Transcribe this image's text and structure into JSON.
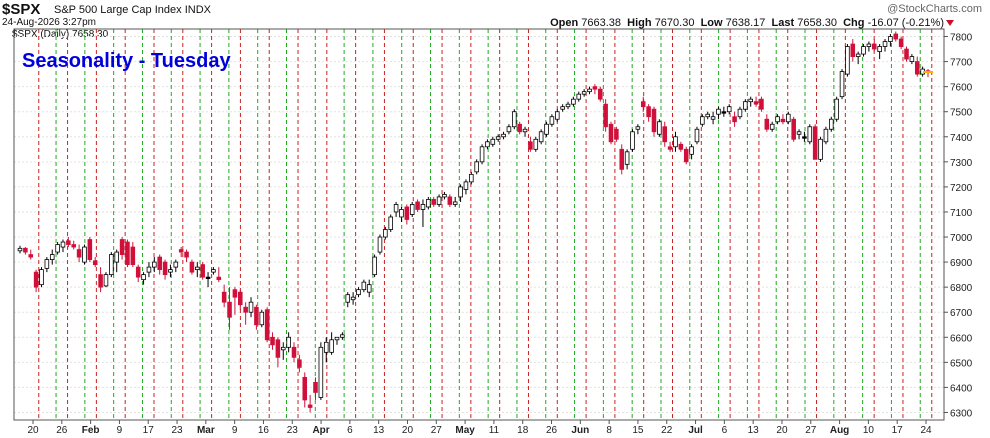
{
  "header": {
    "symbol": "$SPX",
    "description": "S&P 500 Large Cap Index",
    "exchange": "INDX",
    "date_time": "24-Aug-2026 3:27pm",
    "watermark": "@StockCharts.com",
    "open_label": "Open",
    "open": "7663.38",
    "high_label": "High",
    "high": "7670.30",
    "low_label": "Low",
    "low": "7638.17",
    "last_label": "Last",
    "last": "7658.30",
    "chg_label": "Chg",
    "chg": "-16.07 (-0.21%)",
    "legend": "$SPX (Daily) 7658.30"
  },
  "overlay_title": "Seasonality - Tuesday",
  "colors": {
    "up": "#ffffff",
    "down": "#d0103a",
    "doji": "#000000",
    "tuesday_line": "#cc2222",
    "friday_line": "#22aa22",
    "title": "#0000dd"
  },
  "chart_data": {
    "type": "candlestick",
    "ylim": [
      6270,
      7830
    ],
    "y_ticks": [
      6300,
      6400,
      6500,
      6600,
      6700,
      6800,
      6900,
      7000,
      7100,
      7200,
      7300,
      7400,
      7500,
      7600,
      7700,
      7800
    ],
    "x_tick_labels": [
      "20",
      "26",
      "Feb",
      "9",
      "17",
      "23",
      "Mar",
      "9",
      "16",
      "23",
      "Apr",
      "6",
      "13",
      "20",
      "27",
      "May",
      "11",
      "18",
      "26",
      "Jun",
      "8",
      "15",
      "22",
      "Jul",
      "6",
      "13",
      "20",
      "27",
      "Aug",
      "10",
      "17",
      "24"
    ],
    "x_tick_bold": [
      "Feb",
      "Mar",
      "Apr",
      "May",
      "Jun",
      "Jul",
      "Aug"
    ],
    "vertical_lines": "red dashed on each Tuesday, green dashed on each Friday",
    "grid": true,
    "legend": "none",
    "series": [
      {
        "values": [
          [
            6945,
            6965,
            6935,
            6955
          ],
          [
            6955,
            6960,
            6930,
            6940
          ],
          [
            6930,
            6950,
            6910,
            6920
          ],
          [
            6860,
            6870,
            6780,
            6800
          ],
          [
            6810,
            6880,
            6800,
            6870
          ],
          [
            6875,
            6920,
            6860,
            6910
          ],
          [
            6910,
            6950,
            6890,
            6930
          ],
          [
            6940,
            6980,
            6930,
            6970
          ],
          [
            6960,
            6990,
            6940,
            6980
          ],
          [
            6985,
            7000,
            6960,
            6970
          ],
          [
            6970,
            6985,
            6950,
            6960
          ],
          [
            6950,
            6970,
            6900,
            6920
          ],
          [
            6900,
            6970,
            6890,
            6960
          ],
          [
            6990,
            7000,
            6900,
            6910
          ],
          [
            6905,
            6920,
            6880,
            6890
          ],
          [
            6850,
            6880,
            6780,
            6800
          ],
          [
            6805,
            6860,
            6800,
            6850
          ],
          [
            6850,
            6940,
            6840,
            6930
          ],
          [
            6900,
            6950,
            6860,
            6940
          ],
          [
            6990,
            7000,
            6910,
            6930
          ],
          [
            6980,
            6990,
            6880,
            6890
          ],
          [
            6960,
            6980,
            6880,
            6890
          ],
          [
            6880,
            6890,
            6820,
            6840
          ],
          [
            6830,
            6860,
            6810,
            6850
          ],
          [
            6860,
            6900,
            6840,
            6880
          ],
          [
            6880,
            6920,
            6860,
            6900
          ],
          [
            6920,
            6930,
            6850,
            6870
          ],
          [
            6900,
            6910,
            6830,
            6850
          ],
          [
            6860,
            6890,
            6840,
            6870
          ],
          [
            6880,
            6910,
            6860,
            6900
          ],
          [
            6950,
            6960,
            6920,
            6940
          ],
          [
            6940,
            6950,
            6900,
            6920
          ],
          [
            6900,
            6910,
            6850,
            6860
          ],
          [
            6870,
            6900,
            6840,
            6880
          ],
          [
            6890,
            6900,
            6830,
            6840
          ],
          [
            6840,
            6860,
            6800,
            6840
          ],
          [
            6860,
            6880,
            6850,
            6870
          ],
          [
            6840,
            6880,
            6820,
            6830
          ],
          [
            6780,
            6810,
            6720,
            6740
          ],
          [
            6740,
            6800,
            6630,
            6680
          ],
          [
            6790,
            6800,
            6690,
            6760
          ],
          [
            6780,
            6790,
            6710,
            6730
          ],
          [
            6720,
            6740,
            6650,
            6700
          ],
          [
            6700,
            6760,
            6680,
            6740
          ],
          [
            6720,
            6730,
            6630,
            6650
          ],
          [
            6650,
            6710,
            6640,
            6700
          ],
          [
            6710,
            6720,
            6580,
            6590
          ],
          [
            6600,
            6620,
            6550,
            6570
          ],
          [
            6590,
            6600,
            6480,
            6520
          ],
          [
            6550,
            6580,
            6510,
            6560
          ],
          [
            6560,
            6620,
            6540,
            6600
          ],
          [
            6560,
            6580,
            6500,
            6520
          ],
          [
            6510,
            6530,
            6460,
            6480
          ],
          [
            6440,
            6460,
            6320,
            6350
          ],
          [
            6330,
            6370,
            6300,
            6320
          ],
          [
            6420,
            6440,
            6350,
            6380
          ],
          [
            6360,
            6580,
            6350,
            6560
          ],
          [
            6540,
            6600,
            6500,
            6580
          ],
          [
            6540,
            6620,
            6530,
            6590
          ],
          [
            6590,
            6600,
            6570,
            6600
          ],
          [
            6600,
            6620,
            6590,
            6610
          ],
          [
            6740,
            6780,
            6720,
            6770
          ],
          [
            6750,
            6780,
            6730,
            6760
          ],
          [
            6770,
            6800,
            6760,
            6790
          ],
          [
            6790,
            6830,
            6780,
            6820
          ],
          [
            6780,
            6830,
            6760,
            6810
          ],
          [
            6850,
            6930,
            6840,
            6920
          ],
          [
            6940,
            7010,
            6930,
            7000
          ],
          [
            7000,
            7040,
            6990,
            7030
          ],
          [
            7030,
            7090,
            7020,
            7080
          ],
          [
            7100,
            7140,
            7080,
            7130
          ],
          [
            7080,
            7120,
            7060,
            7110
          ],
          [
            7120,
            7130,
            7050,
            7070
          ],
          [
            7090,
            7140,
            7080,
            7130
          ],
          [
            7140,
            7150,
            7100,
            7110
          ],
          [
            7110,
            7150,
            7040,
            7130
          ],
          [
            7120,
            7160,
            7110,
            7150
          ],
          [
            7150,
            7160,
            7120,
            7130
          ],
          [
            7130,
            7170,
            7120,
            7160
          ],
          [
            7160,
            7180,
            7150,
            7170
          ],
          [
            7160,
            7170,
            7120,
            7130
          ],
          [
            7130,
            7160,
            7120,
            7140
          ],
          [
            7160,
            7210,
            7140,
            7200
          ],
          [
            7190,
            7230,
            7170,
            7220
          ],
          [
            7220,
            7260,
            7210,
            7250
          ],
          [
            7260,
            7310,
            7250,
            7300
          ],
          [
            7300,
            7370,
            7290,
            7360
          ],
          [
            7360,
            7390,
            7350,
            7380
          ],
          [
            7370,
            7400,
            7360,
            7390
          ],
          [
            7390,
            7410,
            7380,
            7400
          ],
          [
            7400,
            7420,
            7390,
            7410
          ],
          [
            7420,
            7450,
            7410,
            7440
          ],
          [
            7440,
            7510,
            7430,
            7500
          ],
          [
            7450,
            7460,
            7410,
            7420
          ],
          [
            7420,
            7440,
            7400,
            7430
          ],
          [
            7380,
            7400,
            7340,
            7350
          ],
          [
            7350,
            7400,
            7340,
            7390
          ],
          [
            7380,
            7430,
            7370,
            7420
          ],
          [
            7410,
            7460,
            7400,
            7450
          ],
          [
            7450,
            7490,
            7440,
            7480
          ],
          [
            7470,
            7510,
            7460,
            7500
          ],
          [
            7510,
            7530,
            7500,
            7520
          ],
          [
            7520,
            7540,
            7510,
            7530
          ],
          [
            7530,
            7560,
            7520,
            7550
          ],
          [
            7550,
            7580,
            7540,
            7570
          ],
          [
            7570,
            7590,
            7560,
            7580
          ],
          [
            7580,
            7600,
            7570,
            7590
          ],
          [
            7600,
            7610,
            7570,
            7590
          ],
          [
            7590,
            7600,
            7540,
            7550
          ],
          [
            7530,
            7550,
            7420,
            7440
          ],
          [
            7450,
            7460,
            7370,
            7380
          ],
          [
            7430,
            7440,
            7380,
            7390
          ],
          [
            7350,
            7370,
            7250,
            7270
          ],
          [
            7290,
            7350,
            7270,
            7340
          ],
          [
            7350,
            7430,
            7340,
            7420
          ],
          [
            7430,
            7450,
            7410,
            7440
          ],
          [
            7540,
            7560,
            7500,
            7520
          ],
          [
            7520,
            7530,
            7460,
            7480
          ],
          [
            7510,
            7520,
            7400,
            7420
          ],
          [
            7410,
            7470,
            7400,
            7460
          ],
          [
            7440,
            7460,
            7360,
            7380
          ],
          [
            7360,
            7380,
            7340,
            7350
          ],
          [
            7360,
            7420,
            7340,
            7400
          ],
          [
            7370,
            7380,
            7340,
            7350
          ],
          [
            7350,
            7360,
            7290,
            7300
          ],
          [
            7330,
            7370,
            7310,
            7360
          ],
          [
            7380,
            7440,
            7370,
            7430
          ],
          [
            7450,
            7490,
            7440,
            7480
          ],
          [
            7480,
            7500,
            7470,
            7490
          ],
          [
            7470,
            7500,
            7450,
            7480
          ],
          [
            7490,
            7520,
            7470,
            7510
          ],
          [
            7500,
            7520,
            7480,
            7500
          ],
          [
            7500,
            7530,
            7490,
            7520
          ],
          [
            7480,
            7500,
            7440,
            7460
          ],
          [
            7480,
            7520,
            7470,
            7510
          ],
          [
            7510,
            7550,
            7500,
            7540
          ],
          [
            7540,
            7560,
            7520,
            7550
          ],
          [
            7540,
            7560,
            7520,
            7530
          ],
          [
            7550,
            7560,
            7500,
            7510
          ],
          [
            7470,
            7490,
            7420,
            7430
          ],
          [
            7430,
            7460,
            7420,
            7450
          ],
          [
            7460,
            7490,
            7450,
            7480
          ],
          [
            7470,
            7490,
            7450,
            7460
          ],
          [
            7460,
            7500,
            7450,
            7490
          ],
          [
            7470,
            7480,
            7380,
            7390
          ],
          [
            7410,
            7430,
            7390,
            7420
          ],
          [
            7400,
            7420,
            7380,
            7400
          ],
          [
            7380,
            7450,
            7370,
            7440
          ],
          [
            7440,
            7450,
            7320,
            7310
          ],
          [
            7310,
            7400,
            7300,
            7390
          ],
          [
            7380,
            7440,
            7370,
            7430
          ],
          [
            7430,
            7480,
            7420,
            7470
          ],
          [
            7470,
            7560,
            7460,
            7550
          ],
          [
            7560,
            7670,
            7550,
            7660
          ],
          [
            7650,
            7770,
            7640,
            7760
          ],
          [
            7770,
            7790,
            7700,
            7720
          ],
          [
            7720,
            7740,
            7690,
            7730
          ],
          [
            7730,
            7770,
            7720,
            7760
          ],
          [
            7760,
            7780,
            7740,
            7770
          ],
          [
            7770,
            7790,
            7740,
            7750
          ],
          [
            7740,
            7770,
            7710,
            7760
          ],
          [
            7760,
            7790,
            7740,
            7780
          ],
          [
            7780,
            7810,
            7760,
            7800
          ],
          [
            7810,
            7820,
            7780,
            7790
          ],
          [
            7790,
            7800,
            7750,
            7760
          ],
          [
            7750,
            7760,
            7700,
            7710
          ],
          [
            7700,
            7730,
            7690,
            7720
          ],
          [
            7700,
            7720,
            7640,
            7650
          ],
          [
            7650,
            7680,
            7640,
            7670
          ],
          [
            7663.38,
            7670.3,
            7638.17,
            7658.3
          ]
        ]
      }
    ]
  }
}
